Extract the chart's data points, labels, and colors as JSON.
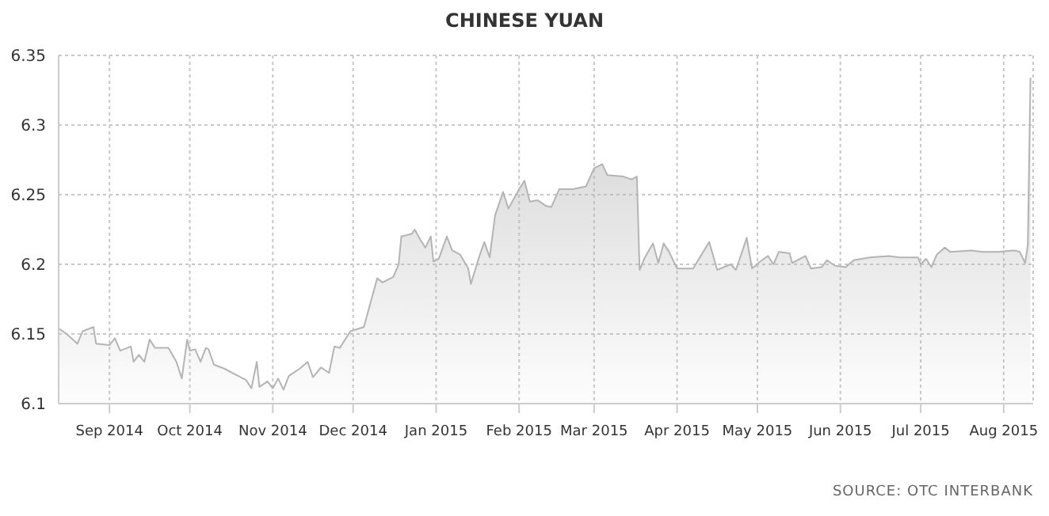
{
  "chart_data": {
    "type": "area",
    "title": "CHINESE YUAN",
    "annotations": [
      "SOURCE: OTC INTERBANK"
    ],
    "x": [
      "2014-08-13",
      "2014-08-16",
      "2014-08-20",
      "2014-08-22",
      "2014-08-26",
      "2014-08-27",
      "2014-09-01",
      "2014-09-03",
      "2014-09-05",
      "2014-09-09",
      "2014-09-10",
      "2014-09-12",
      "2014-09-14",
      "2014-09-16",
      "2014-09-18",
      "2014-09-23",
      "2014-09-26",
      "2014-09-28",
      "2014-09-30",
      "2014-10-01",
      "2014-10-03",
      "2014-10-05",
      "2014-10-07",
      "2014-10-08",
      "2014-10-10",
      "2014-10-14",
      "2014-10-18",
      "2014-10-22",
      "2014-10-24",
      "2014-10-26",
      "2014-10-27",
      "2014-10-30",
      "2014-11-01",
      "2014-11-03",
      "2014-11-05",
      "2014-11-07",
      "2014-11-11",
      "2014-11-14",
      "2014-11-16",
      "2014-11-19",
      "2014-11-22",
      "2014-11-24",
      "2014-11-26",
      "2014-11-30",
      "2014-12-05",
      "2014-12-10",
      "2014-12-12",
      "2014-12-16",
      "2014-12-18",
      "2014-12-19",
      "2014-12-23",
      "2014-12-24",
      "2014-12-26",
      "2014-12-28",
      "2014-12-30",
      "2014-12-31",
      "2015-01-02",
      "2015-01-05",
      "2015-01-07",
      "2015-01-10",
      "2015-01-13",
      "2015-01-14",
      "2015-01-17",
      "2015-01-19",
      "2015-01-21",
      "2015-01-23",
      "2015-01-26",
      "2015-01-28",
      "2015-02-01",
      "2015-02-03",
      "2015-02-05",
      "2015-02-08",
      "2015-02-11",
      "2015-02-13",
      "2015-02-16",
      "2015-02-21",
      "2015-02-26",
      "2015-03-01",
      "2015-03-04",
      "2015-03-06",
      "2015-03-12",
      "2015-03-15",
      "2015-03-17",
      "2015-03-18",
      "2015-03-20",
      "2015-03-23",
      "2015-03-25",
      "2015-03-27",
      "2015-03-29",
      "2015-04-01",
      "2015-04-07",
      "2015-04-13",
      "2015-04-16",
      "2015-04-21",
      "2015-04-23",
      "2015-04-27",
      "2015-04-29",
      "2015-05-02",
      "2015-05-05",
      "2015-05-07",
      "2015-05-09",
      "2015-05-13",
      "2015-05-14",
      "2015-05-19",
      "2015-05-21",
      "2015-05-25",
      "2015-05-27",
      "2015-05-30",
      "2015-06-03",
      "2015-06-06",
      "2015-06-12",
      "2015-06-19",
      "2015-06-23",
      "2015-06-30",
      "2015-07-01",
      "2015-07-03",
      "2015-07-05",
      "2015-07-07",
      "2015-07-10",
      "2015-07-12",
      "2015-07-20",
      "2015-07-24",
      "2015-07-30",
      "2015-08-05",
      "2015-08-07",
      "2015-08-09",
      "2015-08-10",
      "2015-08-11"
    ],
    "series": [
      {
        "color": "#b4b4b4",
        "values": [
          6.154,
          6.15,
          6.143,
          6.152,
          6.155,
          6.143,
          6.142,
          6.147,
          6.138,
          6.141,
          6.13,
          6.135,
          6.13,
          6.146,
          6.14,
          6.14,
          6.13,
          6.118,
          6.146,
          6.138,
          6.139,
          6.13,
          6.14,
          6.139,
          6.128,
          6.125,
          6.121,
          6.117,
          6.111,
          6.13,
          6.112,
          6.116,
          6.111,
          6.118,
          6.11,
          6.12,
          6.125,
          6.13,
          6.119,
          6.126,
          6.122,
          6.141,
          6.14,
          6.152,
          6.155,
          6.19,
          6.187,
          6.191,
          6.2,
          6.22,
          6.222,
          6.225,
          6.218,
          6.212,
          6.22,
          6.202,
          6.204,
          6.22,
          6.21,
          6.207,
          6.197,
          6.186,
          6.205,
          6.216,
          6.205,
          6.235,
          6.252,
          6.24,
          6.254,
          6.26,
          6.245,
          6.246,
          6.242,
          6.241,
          6.254,
          6.254,
          6.256,
          6.269,
          6.272,
          6.264,
          6.263,
          6.261,
          6.263,
          6.196,
          6.205,
          6.215,
          6.201,
          6.215,
          6.209,
          6.197,
          6.197,
          6.216,
          6.196,
          6.2,
          6.196,
          6.219,
          6.197,
          6.202,
          6.206,
          6.2,
          6.209,
          6.208,
          6.201,
          6.206,
          6.197,
          6.198,
          6.203,
          6.199,
          6.198,
          6.203,
          6.205,
          6.206,
          6.205,
          6.205,
          6.2,
          6.204,
          6.198,
          6.207,
          6.212,
          6.209,
          6.21,
          6.209,
          6.209,
          6.21,
          6.209,
          6.201,
          6.214,
          6.334
        ]
      }
    ],
    "xlim": [
      "2014-08-13",
      "2015-08-12"
    ],
    "xticks": [
      {
        "value": "2014-09-01",
        "label": "Sep 2014"
      },
      {
        "value": "2014-10-01",
        "label": "Oct 2014"
      },
      {
        "value": "2014-11-01",
        "label": "Nov 2014"
      },
      {
        "value": "2014-12-01",
        "label": "Dec 2014"
      },
      {
        "value": "2015-01-01",
        "label": "Jan 2015"
      },
      {
        "value": "2015-02-01",
        "label": "Feb 2015"
      },
      {
        "value": "2015-03-01",
        "label": "Mar 2015"
      },
      {
        "value": "2015-04-01",
        "label": "Apr 2015"
      },
      {
        "value": "2015-05-01",
        "label": "May 2015"
      },
      {
        "value": "2015-06-01",
        "label": "Jun 2015"
      },
      {
        "value": "2015-07-01",
        "label": "Jul 2015"
      },
      {
        "value": "2015-08-01",
        "label": "Aug 2015"
      }
    ],
    "ylim": [
      6.1,
      6.35
    ],
    "yticks": [
      6.1,
      6.15,
      6.2,
      6.25,
      6.3,
      6.35
    ],
    "grid": true,
    "line_style": "solid",
    "marker": "none"
  }
}
